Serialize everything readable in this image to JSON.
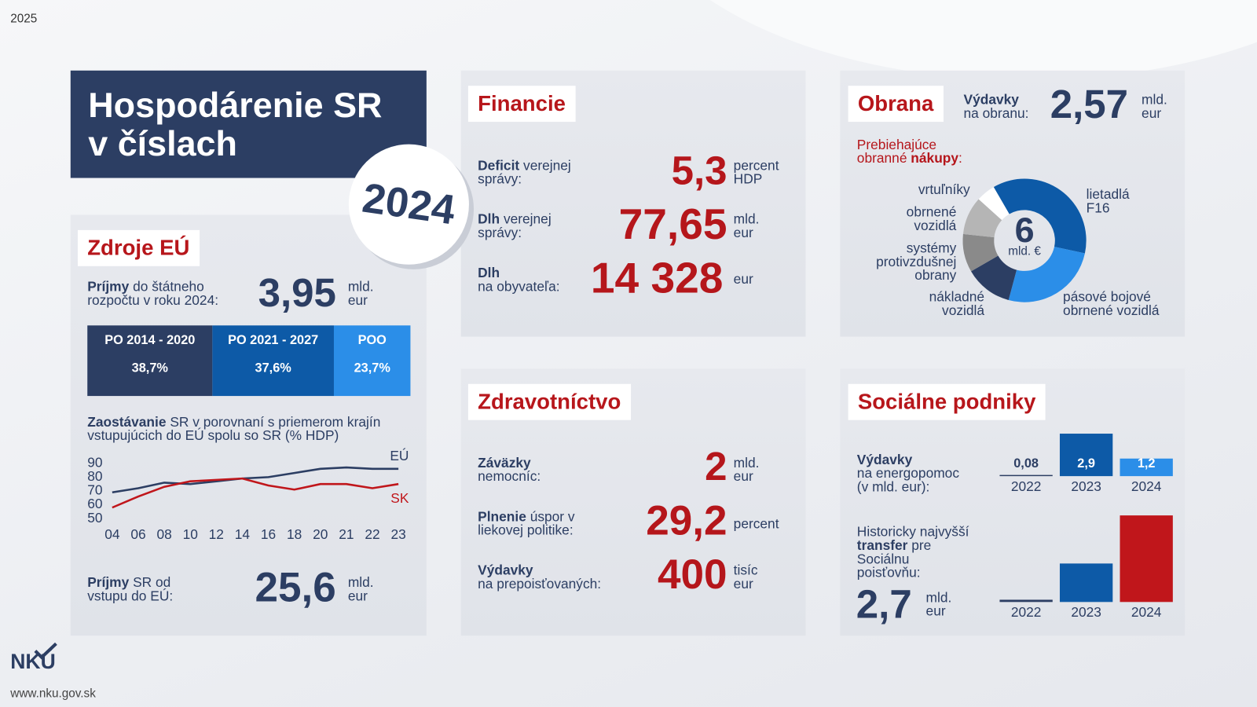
{
  "header": {
    "year": "2025",
    "title_line1": "Hospodárenie SR",
    "title_line2": "v číslach",
    "badge": "2024"
  },
  "zdroje_eu": {
    "heading": "Zdroje EÚ",
    "prijmy": {
      "bold": "Príjmy",
      "text": "do štátneho rozpočtu v roku 2024:",
      "value": "3,95",
      "unit": "mld. eur"
    },
    "line_title": {
      "bold": "Zaostávanie",
      "text": "SR v porovnaní s priemerom krajín vstupujúcich do EÚ spolu so SR (% HDP)"
    },
    "prijmy_celkom": {
      "bold": "Príjmy",
      "text": "SR od vstupu do EÚ:",
      "value": "25,6",
      "unit": "mld. eur"
    }
  },
  "financie": {
    "heading": "Financie",
    "rows": [
      {
        "bold": "Deficit",
        "text": "verejnej správy:",
        "value": "5,3",
        "unit": "percent HDP"
      },
      {
        "bold": "Dlh",
        "text": "verejnej správy:",
        "value": "77,65",
        "unit": "mld. eur"
      },
      {
        "bold": "Dlh",
        "text": "na obyvateľa:",
        "value": "14 328",
        "unit": "eur"
      }
    ]
  },
  "obrana": {
    "heading": "Obrana",
    "vydavky": {
      "bold": "Výdavky",
      "text": "na obranu:",
      "value": "2,57",
      "unit": "mld. eur"
    },
    "nakupy": {
      "text": "Prebiehajúce obranné",
      "bold": "nákupy",
      "end": ":"
    },
    "center_value": "6",
    "center_unit": "mld. €"
  },
  "zdravotnictvo": {
    "heading": "Zdravotníctvo",
    "rows": [
      {
        "bold": "Záväzky",
        "text": "nemocníc:",
        "value": "2",
        "unit": "mld. eur"
      },
      {
        "bold": "Plnenie",
        "text": "úspor v liekovej politike:",
        "value": "29,2",
        "unit": "percent"
      },
      {
        "bold": "Výdavky",
        "text": "na prepoisťovaných:",
        "value": "400",
        "unit": "tisíc eur"
      }
    ]
  },
  "socialne": {
    "heading": "Sociálne podniky",
    "energopomoc": {
      "bold": "Výdavky",
      "text": "na energopomoc (v mld. eur):"
    },
    "transfer": {
      "text": "Historicky najvyšší",
      "bold": "transfer",
      "end": "pre Sociálnu poisťovňu:",
      "value": "2,7",
      "unit": "mld. eur"
    }
  },
  "footer": {
    "logo": "NKÚ",
    "url": "www.nku.gov.sk"
  },
  "chart_data": [
    {
      "type": "stacked_bar",
      "categories": [
        "PO 2014 - 2020",
        "PO 2021 - 2027",
        "POO"
      ],
      "values": [
        38.7,
        37.6,
        23.7
      ],
      "value_labels": [
        "38,7%",
        "37,6%",
        "23,7%"
      ],
      "colors": [
        "#2c3e63",
        "#0d5aa7",
        "#2b8ee8"
      ]
    },
    {
      "type": "line",
      "categories": [
        "04",
        "06",
        "08",
        "10",
        "12",
        "14",
        "16",
        "18",
        "20",
        "21",
        "22",
        "23"
      ],
      "series": [
        {
          "name": "EÚ",
          "color": "#2c3e63",
          "values": [
            69,
            72,
            76,
            75,
            77,
            79,
            80,
            83,
            86,
            87,
            86,
            86
          ]
        },
        {
          "name": "SK",
          "color": "#c0161b",
          "values": [
            58,
            66,
            73,
            77,
            78,
            79,
            74,
            71,
            75,
            75,
            72,
            75
          ]
        }
      ],
      "ylim": [
        50,
        90
      ],
      "yticks": [
        90,
        80,
        70,
        60,
        50
      ]
    },
    {
      "type": "donut",
      "categories": [
        "lietadlá F16",
        "pásové bojové obrnené vozidlá",
        "nákladné vozidlá",
        "systémy protivzdušnej obrany",
        "obrnené vozidlá",
        "vrtuľníky"
      ],
      "values": [
        2.2,
        1.55,
        0.75,
        0.6,
        0.6,
        0.3
      ],
      "colors": [
        "#0d5aa7",
        "#2b8ee8",
        "#2c3e63",
        "#8a8a8a",
        "#b5b5b5",
        "#ffffff"
      ]
    },
    {
      "type": "bar",
      "categories": [
        "2022",
        "2023",
        "2024"
      ],
      "values": [
        0.08,
        2.9,
        1.2
      ],
      "value_labels": [
        "0,08",
        "2,9",
        "1,2"
      ],
      "colors": [
        "#2c3e63",
        "#0d5aa7",
        "#2b8ee8"
      ]
    },
    {
      "type": "bar",
      "categories": [
        "2022",
        "2023",
        "2024"
      ],
      "values": [
        0.07,
        1.2,
        2.7
      ],
      "colors": [
        "#2c3e63",
        "#0d5aa7",
        "#c0161b"
      ]
    }
  ]
}
